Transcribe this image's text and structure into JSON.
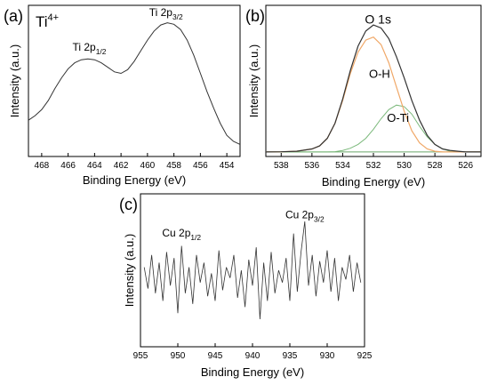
{
  "chart_data": [
    {
      "panel": "(a)",
      "type": "line",
      "annotation": "Ti",
      "annotation_sup": "4+",
      "xlabel": "Binding Energy (eV)",
      "ylabel": "Intensity (a.u.)",
      "xlim": [
        469,
        453
      ],
      "ylim": [
        0,
        1
      ],
      "x_ticks": [
        468,
        466,
        464,
        462,
        460,
        458,
        456,
        454
      ],
      "peak_labels": [
        {
          "main": "Ti 2p",
          "sub": "1/2",
          "x": 464.4,
          "y": 0.7
        },
        {
          "main": "Ti 2p",
          "sub": "3/2",
          "x": 458.6,
          "y": 0.93
        }
      ],
      "series": [
        {
          "x": [
            469,
            468.5,
            468,
            467.5,
            467,
            466.5,
            466,
            465.5,
            465,
            464.5,
            464,
            463.5,
            463,
            462.5,
            462,
            461.5,
            461,
            460.5,
            460,
            459.5,
            459,
            458.5,
            458,
            457.5,
            457,
            456.5,
            456,
            455.5,
            455,
            454.5,
            454,
            453.5,
            453
          ],
          "values": [
            0.24,
            0.27,
            0.31,
            0.37,
            0.45,
            0.52,
            0.58,
            0.62,
            0.64,
            0.645,
            0.64,
            0.62,
            0.59,
            0.56,
            0.55,
            0.575,
            0.63,
            0.7,
            0.77,
            0.83,
            0.87,
            0.885,
            0.875,
            0.84,
            0.77,
            0.67,
            0.55,
            0.43,
            0.32,
            0.22,
            0.14,
            0.1,
            0.08
          ]
        }
      ]
    },
    {
      "panel": "(b)",
      "type": "line",
      "xlabel": "Binding Energy (eV)",
      "ylabel": "Intensity (a.u.)",
      "xlim": [
        539,
        525
      ],
      "ylim": [
        0,
        1
      ],
      "x_ticks": [
        538,
        536,
        534,
        532,
        530,
        528,
        526
      ],
      "component_labels": [
        {
          "text": "O 1s",
          "x": 531.7,
          "y": 0.88
        },
        {
          "text": "O-H",
          "x": 531.6,
          "y": 0.52
        },
        {
          "text": "O-Ti",
          "x": 530.4,
          "y": 0.23
        }
      ],
      "colors": {
        "envelope": "#333333",
        "oh": "#f0a868",
        "oti": "#7ab87a",
        "baseline": "#6aa86a"
      },
      "series": [
        {
          "id": "envelope",
          "x": [
            539,
            538,
            537,
            536,
            535.5,
            535,
            534.5,
            534,
            533.5,
            533,
            532.5,
            532,
            531.5,
            531,
            530.5,
            530,
            529.5,
            529,
            528.5,
            528,
            527.5,
            527,
            526.5,
            526,
            525.5,
            525
          ],
          "values": [
            0.03,
            0.031,
            0.035,
            0.05,
            0.07,
            0.12,
            0.22,
            0.38,
            0.57,
            0.73,
            0.83,
            0.87,
            0.85,
            0.78,
            0.66,
            0.52,
            0.37,
            0.24,
            0.14,
            0.08,
            0.05,
            0.04,
            0.035,
            0.03,
            0.03,
            0.03
          ]
        },
        {
          "id": "oh",
          "x": [
            539,
            538,
            537,
            536,
            535.5,
            535,
            534.5,
            534,
            533.5,
            533,
            532.5,
            532,
            531.5,
            531,
            530.5,
            530,
            529.5,
            529,
            528.5,
            528,
            527.5,
            527,
            526.5,
            526,
            525.5,
            525
          ],
          "values": [
            0.03,
            0.031,
            0.035,
            0.05,
            0.07,
            0.12,
            0.22,
            0.37,
            0.55,
            0.69,
            0.77,
            0.79,
            0.74,
            0.62,
            0.46,
            0.3,
            0.17,
            0.09,
            0.05,
            0.035,
            0.03,
            0.03,
            0.03,
            0.03,
            0.03,
            0.03
          ]
        },
        {
          "id": "oti",
          "x": [
            539,
            538,
            537,
            536,
            535.5,
            535,
            534.5,
            534,
            533.5,
            533,
            532.5,
            532,
            531.5,
            531,
            530.5,
            530,
            529.5,
            529,
            528.5,
            528,
            527.5,
            527,
            526.5,
            526,
            525.5,
            525
          ],
          "values": [
            0.03,
            0.03,
            0.03,
            0.03,
            0.03,
            0.03,
            0.032,
            0.04,
            0.055,
            0.08,
            0.12,
            0.18,
            0.25,
            0.31,
            0.34,
            0.33,
            0.28,
            0.2,
            0.13,
            0.08,
            0.05,
            0.035,
            0.03,
            0.03,
            0.03,
            0.03
          ]
        },
        {
          "id": "baseline",
          "x": [
            539,
            525
          ],
          "values": [
            0.03,
            0.03
          ]
        }
      ]
    },
    {
      "panel": "(c)",
      "type": "line",
      "xlabel": "Binding Energy (eV)",
      "ylabel": "Intensity (a.u.)",
      "xlim": [
        955,
        925
      ],
      "ylim": [
        0,
        1
      ],
      "x_ticks": [
        955,
        950,
        945,
        940,
        935,
        930,
        925
      ],
      "peak_labels": [
        {
          "main": "Cu 2p",
          "sub": "1/2",
          "x": 949.5,
          "y": 0.72
        },
        {
          "main": "Cu 2p",
          "sub": "3/2",
          "x": 933.0,
          "y": 0.84
        }
      ],
      "series": [
        {
          "x": [
            954.5,
            954,
            953.5,
            953,
            952.5,
            952,
            951.5,
            951,
            950.5,
            950,
            949.5,
            949,
            948.5,
            948,
            947.5,
            947,
            946.5,
            946,
            945.5,
            945,
            944.5,
            944,
            943.5,
            943,
            942.5,
            942,
            941.5,
            941,
            940.5,
            940,
            939.5,
            939,
            938.5,
            938,
            937.5,
            937,
            936.5,
            936,
            935.5,
            935,
            934.5,
            934,
            933.5,
            933,
            932.5,
            932,
            931.5,
            931,
            930.5,
            930,
            929.5,
            929,
            928.5,
            928,
            927.5,
            927,
            926.5,
            926,
            925.5
          ],
          "values": [
            0.52,
            0.38,
            0.6,
            0.35,
            0.55,
            0.3,
            0.62,
            0.4,
            0.58,
            0.22,
            0.66,
            0.35,
            0.52,
            0.28,
            0.6,
            0.42,
            0.55,
            0.33,
            0.48,
            0.3,
            0.63,
            0.37,
            0.52,
            0.45,
            0.6,
            0.32,
            0.5,
            0.26,
            0.57,
            0.4,
            0.65,
            0.18,
            0.55,
            0.3,
            0.62,
            0.35,
            0.5,
            0.42,
            0.58,
            0.3,
            0.74,
            0.36,
            0.62,
            0.82,
            0.4,
            0.6,
            0.33,
            0.56,
            0.42,
            0.63,
            0.36,
            0.58,
            0.3,
            0.52,
            0.44,
            0.6,
            0.36,
            0.55,
            0.42
          ]
        }
      ]
    }
  ]
}
